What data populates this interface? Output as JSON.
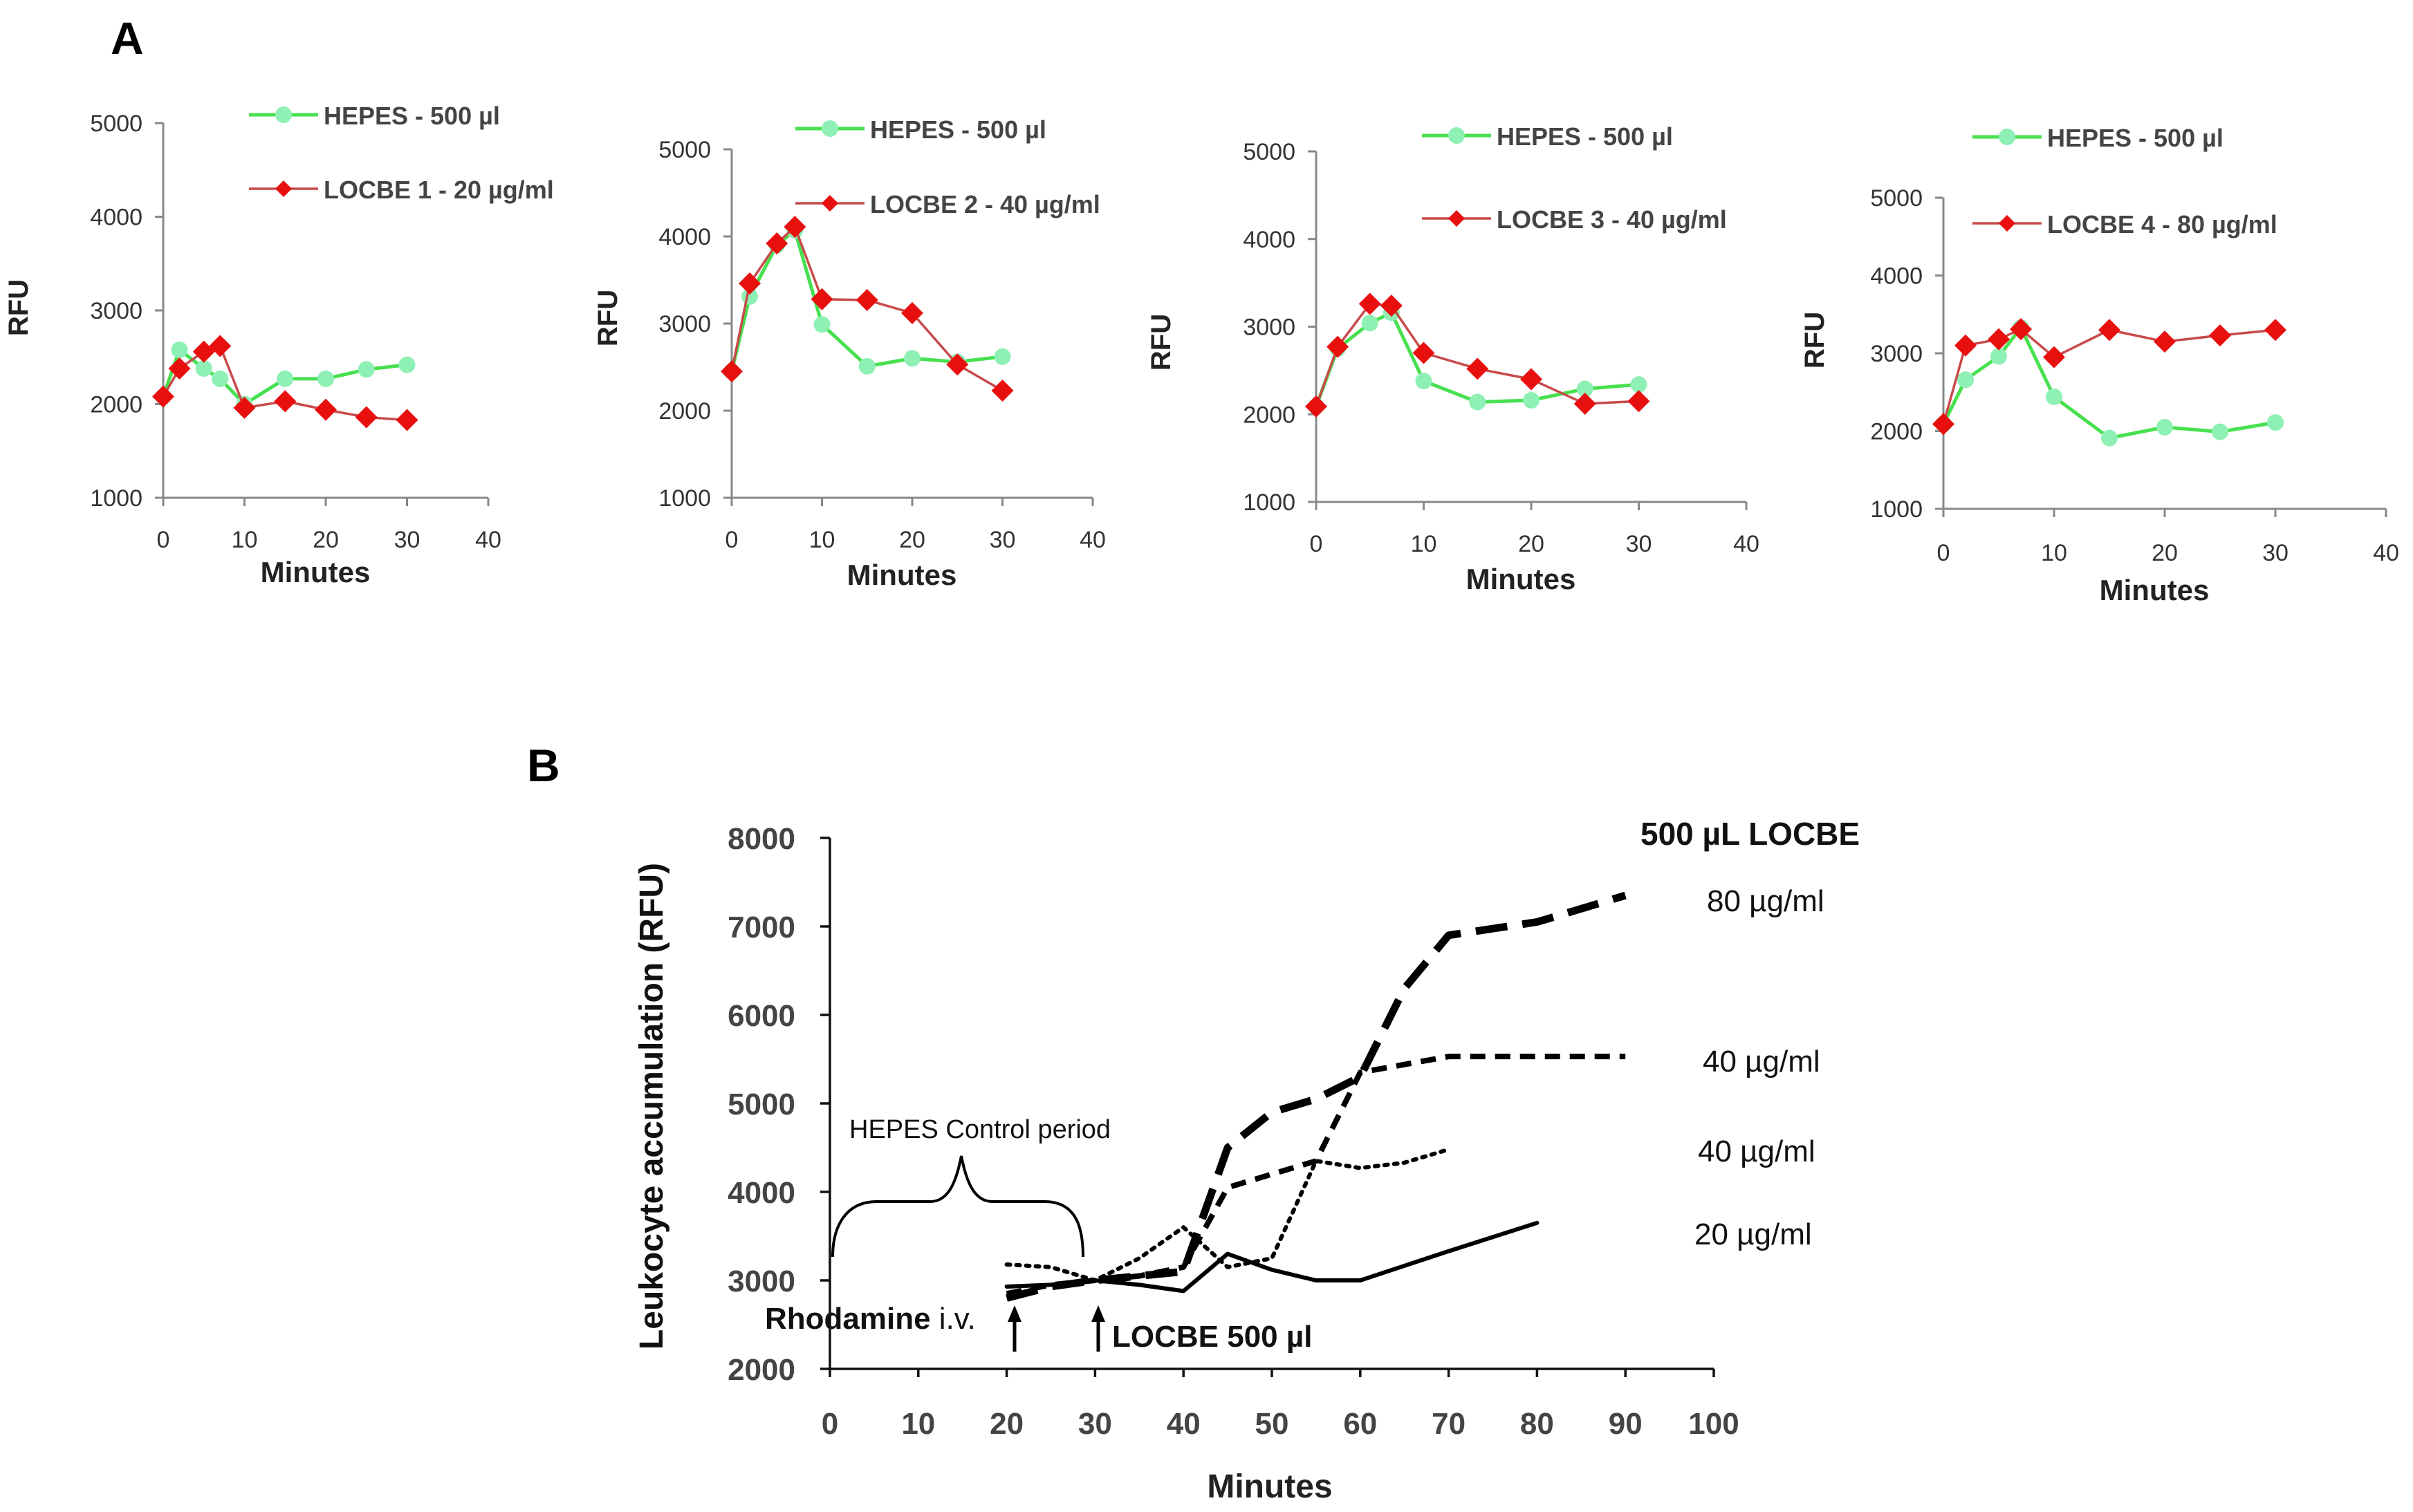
{
  "panel_labels": {
    "a": "A",
    "b": "B"
  },
  "colors": {
    "hepes": "#47e04f",
    "hepes_marker": "#8ff0b5",
    "locbe": "#c84a4a",
    "locbe_marker": "#e8100f"
  },
  "chart_data": [
    {
      "type": "line",
      "panel": "A1",
      "xlabel": "Minutes",
      "ylabel": "RFU",
      "xlim": [
        0,
        40
      ],
      "ylim": [
        1000,
        5000
      ],
      "xticks": [
        "0",
        "10",
        "20",
        "30",
        "40"
      ],
      "yticks": [
        "1000",
        "2000",
        "3000",
        "4000",
        "5000"
      ],
      "x": [
        0,
        2,
        5,
        7,
        10,
        15,
        20,
        25,
        30
      ],
      "series": [
        {
          "name": "HEPES  - 500 µl",
          "values": [
            2080,
            2580,
            2380,
            2270,
            2000,
            2270,
            2270,
            2370,
            2420
          ]
        },
        {
          "name": "LOCBE 1 - 20 µg/ml",
          "values": [
            2080,
            2380,
            2560,
            2620,
            1960,
            2030,
            1940,
            1860,
            1830
          ]
        }
      ]
    },
    {
      "type": "line",
      "panel": "A2",
      "xlabel": "Minutes",
      "ylabel": "RFU",
      "xlim": [
        0,
        40
      ],
      "ylim": [
        1000,
        5000
      ],
      "xticks": [
        "0",
        "10",
        "20",
        "30",
        "40"
      ],
      "yticks": [
        "1000",
        "2000",
        "3000",
        "4000",
        "5000"
      ],
      "x": [
        0,
        2,
        5,
        7,
        10,
        15,
        20,
        25,
        30
      ],
      "series": [
        {
          "name": "HEPES  - 500 µl",
          "values": [
            2450,
            3310,
            3900,
            4070,
            2990,
            2510,
            2600,
            2560,
            2620
          ]
        },
        {
          "name": "LOCBE 2 -  40 µg/ml",
          "values": [
            2450,
            3460,
            3920,
            4110,
            3280,
            3270,
            3120,
            2530,
            2230
          ]
        }
      ]
    },
    {
      "type": "line",
      "panel": "A3",
      "xlabel": "Minutes",
      "ylabel": "RFU",
      "xlim": [
        0,
        40
      ],
      "ylim": [
        1000,
        5000
      ],
      "xticks": [
        "0",
        "10",
        "20",
        "30",
        "40"
      ],
      "yticks": [
        "1000",
        "2000",
        "3000",
        "4000",
        "5000"
      ],
      "x": [
        0,
        2,
        5,
        7,
        10,
        15,
        20,
        25,
        30
      ],
      "series": [
        {
          "name": "HEPES  - 500 µl",
          "values": [
            2090,
            2750,
            3040,
            3160,
            2380,
            2140,
            2160,
            2290,
            2340
          ]
        },
        {
          "name": "LOCBE 3 - 40 µg/ml",
          "values": [
            2090,
            2770,
            3260,
            3240,
            2700,
            2520,
            2400,
            2120,
            2150
          ]
        }
      ]
    },
    {
      "type": "line",
      "panel": "A4",
      "xlabel": "Minutes",
      "ylabel": "RFU",
      "xlim": [
        0,
        40
      ],
      "ylim": [
        1000,
        5000
      ],
      "xticks": [
        "0",
        "10",
        "20",
        "30",
        "40"
      ],
      "yticks": [
        "1000",
        "2000",
        "3000",
        "4000",
        "5000"
      ],
      "x": [
        0,
        2,
        5,
        7,
        10,
        15,
        20,
        25,
        30
      ],
      "series": [
        {
          "name": "HEPES  - 500 µl",
          "values": [
            2090,
            2660,
            2960,
            3330,
            2440,
            1910,
            2050,
            1990,
            2110
          ]
        },
        {
          "name": "LOCBE 4 -  80 µg/ml",
          "values": [
            2090,
            3100,
            3180,
            3310,
            2950,
            3300,
            3150,
            3230,
            3300
          ]
        }
      ]
    },
    {
      "type": "line",
      "panel": "B",
      "xlabel": "Minutes",
      "ylabel": "Leukocyte accumulation (RFU)",
      "xlim": [
        0,
        100
      ],
      "ylim": [
        2000,
        8000
      ],
      "xticks": [
        "0",
        "10",
        "20",
        "30",
        "40",
        "50",
        "60",
        "70",
        "80",
        "90",
        "100"
      ],
      "yticks": [
        "2000",
        "3000",
        "4000",
        "5000",
        "6000",
        "7000",
        "8000"
      ],
      "legend_title": "500 µL LOCBE",
      "series": [
        {
          "name": "80 µg/ml",
          "style": "long-dash",
          "x": [
            20,
            25,
            30,
            35,
            40,
            45,
            50,
            55,
            60,
            65,
            70,
            80,
            90
          ],
          "values": [
            2800,
            2930,
            3000,
            3050,
            3100,
            4500,
            4900,
            5050,
            5300,
            6300,
            6900,
            7050,
            7350
          ]
        },
        {
          "name": "40 µg/ml",
          "style": "short-dash",
          "x": [
            20,
            25,
            30,
            35,
            40,
            45,
            50,
            55,
            60,
            70,
            80,
            90
          ],
          "values": [
            2850,
            2950,
            3000,
            3050,
            3150,
            4050,
            4200,
            4350,
            5350,
            5530,
            5530,
            5530
          ]
        },
        {
          "name": "40 µg/ml",
          "style": "dotted",
          "x": [
            20,
            25,
            30,
            35,
            40,
            45,
            50,
            55,
            60,
            65,
            70
          ],
          "values": [
            3180,
            3150,
            3000,
            3250,
            3600,
            3150,
            3250,
            4350,
            4270,
            4330,
            4480
          ]
        },
        {
          "name": "20 µg/ml",
          "style": "solid",
          "x": [
            20,
            25,
            30,
            35,
            40,
            45,
            50,
            55,
            60,
            70,
            80
          ],
          "values": [
            2930,
            2950,
            3000,
            2950,
            2880,
            3300,
            3120,
            3000,
            3000,
            3330,
            3650
          ]
        }
      ],
      "annotations": {
        "control_period": "HEPES Control  period",
        "rhodamine_prefix": "Rhodamine",
        "rhodamine_suffix": " i.v.",
        "locbe_arrow": "LOCBE  500 µl"
      }
    }
  ]
}
